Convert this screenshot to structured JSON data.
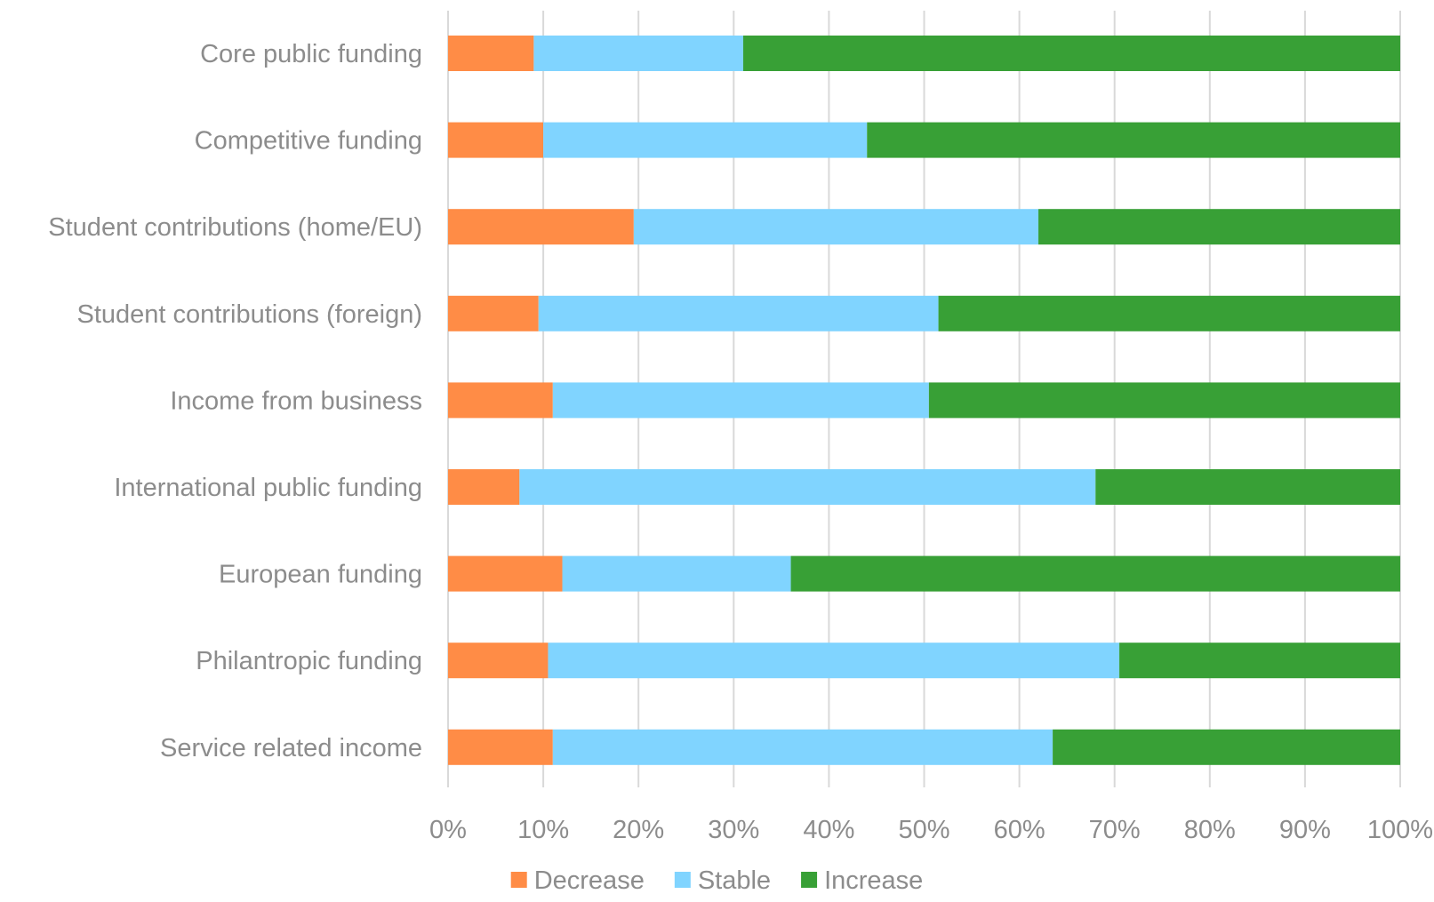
{
  "chart_data": {
    "type": "bar",
    "orientation": "horizontal",
    "stacked": "percent",
    "title": "",
    "xlabel": "",
    "ylabel": "",
    "xlim": [
      0,
      100
    ],
    "x_ticks": [
      "0%",
      "10%",
      "20%",
      "30%",
      "40%",
      "50%",
      "60%",
      "70%",
      "80%",
      "90%",
      "100%"
    ],
    "grid": true,
    "legend_position": "bottom",
    "categories": [
      "Core public funding",
      "Competitive funding",
      "Student contributions (home/EU)",
      "Student contributions (foreign)",
      "Income from business",
      "International public funding",
      "European funding",
      "Philantropic funding",
      "Service related income"
    ],
    "series": [
      {
        "name": "Decrease",
        "color": "#FF8C46",
        "values": [
          9,
          10,
          19.5,
          9.5,
          11,
          7.5,
          12,
          10.5,
          11
        ]
      },
      {
        "name": "Stable",
        "color": "#80D4FF",
        "values": [
          22,
          34,
          42.5,
          42,
          39.5,
          60.5,
          24,
          60,
          52.5
        ]
      },
      {
        "name": "Increase",
        "color": "#38A036",
        "values": [
          69,
          56,
          38,
          48.5,
          49.5,
          32,
          64,
          29.5,
          36.5
        ]
      }
    ]
  }
}
